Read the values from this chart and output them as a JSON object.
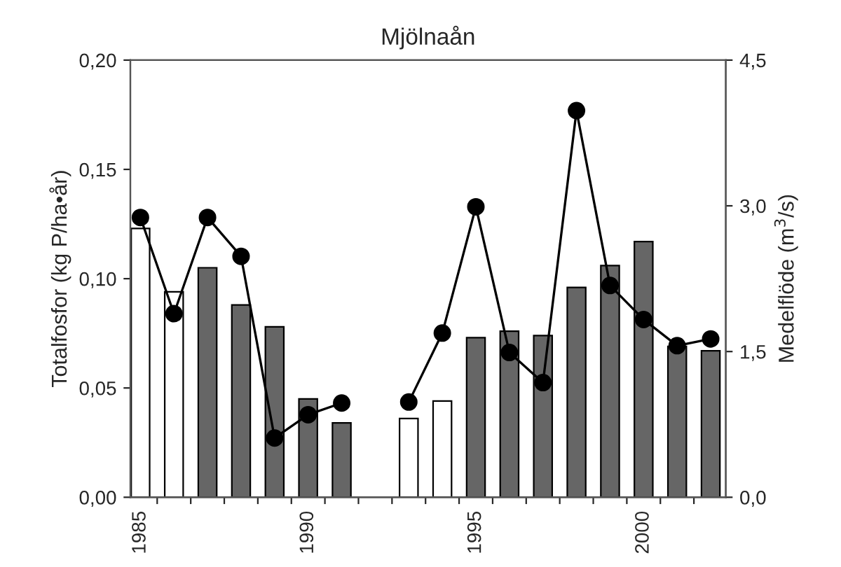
{
  "chart_data": {
    "type": "bar",
    "title": "Mjölnaån",
    "ylabel": "Totalfosfor (kg P/ha•år)",
    "y2label": "Medelflöde (m$^{3}$/s)",
    "x": [
      1985,
      1986,
      1987,
      1988,
      1989,
      1990,
      1991,
      1992,
      1993,
      1994,
      1995,
      1996,
      1997,
      1998,
      1999,
      2000,
      2001,
      2002
    ],
    "series": [
      {
        "colors": [
          "#ffffff",
          "#ffffff",
          "#666666",
          "#666666",
          "#666666",
          "#666666",
          "#666666",
          null,
          "#ffffff",
          "#ffffff",
          "#666666",
          "#666666",
          "#666666",
          "#666666",
          "#666666",
          "#666666",
          "#666666",
          "#666666"
        ],
        "values": [
          0.123,
          0.094,
          0.105,
          0.088,
          0.078,
          0.045,
          0.034,
          null,
          0.036,
          0.044,
          0.073,
          0.076,
          0.074,
          0.096,
          0.106,
          0.117,
          0.069,
          0.067
        ]
      },
      {
        "type": "line",
        "axis": "y2",
        "color": "#000000",
        "marker": "circle",
        "line_style": "solid",
        "values": [
          2.88,
          1.89,
          2.88,
          2.48,
          0.61,
          0.85,
          0.97,
          null,
          0.98,
          1.69,
          2.99,
          1.49,
          1.18,
          3.98,
          2.18,
          1.83,
          1.56,
          1.63
        ]
      }
    ],
    "xlim": [
      1984.7,
      2002.45
    ],
    "xticks": [
      {
        "value": 1985,
        "label": "1985"
      },
      {
        "value": 1990,
        "label": "1990"
      },
      {
        "value": 1995,
        "label": "1995"
      },
      {
        "value": 2000,
        "label": "2000"
      },
      {
        "value": 1985.5,
        "label": null
      },
      {
        "value": 1986.5,
        "label": null
      },
      {
        "value": 1987.5,
        "label": null
      },
      {
        "value": 1988.5,
        "label": null
      },
      {
        "value": 1989.5,
        "label": null
      },
      {
        "value": 1990.5,
        "label": null
      },
      {
        "value": 1991.5,
        "label": null
      },
      {
        "value": 1992.5,
        "label": null
      },
      {
        "value": 1993.5,
        "label": null
      },
      {
        "value": 1994.5,
        "label": null
      },
      {
        "value": 1995.5,
        "label": null
      },
      {
        "value": 1996.5,
        "label": null
      },
      {
        "value": 1997.5,
        "label": null
      },
      {
        "value": 1998.5,
        "label": null
      },
      {
        "value": 1999.5,
        "label": null
      },
      {
        "value": 2000.5,
        "label": null
      },
      {
        "value": 2001.5,
        "label": null
      }
    ],
    "ylim": [
      0,
      0.2
    ],
    "yticks": [
      {
        "value": 0,
        "label": "0,00"
      },
      {
        "value": 0.05,
        "label": "0,05"
      },
      {
        "value": 0.1,
        "label": "0,10"
      },
      {
        "value": 0.15,
        "label": "0,15"
      },
      {
        "value": 0.2,
        "label": "0,20"
      }
    ],
    "y2lim": [
      0,
      4.5
    ],
    "y2ticks": [
      {
        "value": 0,
        "label": "0,0"
      },
      {
        "value": 1.5,
        "label": "1,5"
      },
      {
        "value": 3,
        "label": "3,0"
      },
      {
        "value": 4.5,
        "label": "4,5"
      }
    ],
    "grid": false,
    "legend": false
  }
}
